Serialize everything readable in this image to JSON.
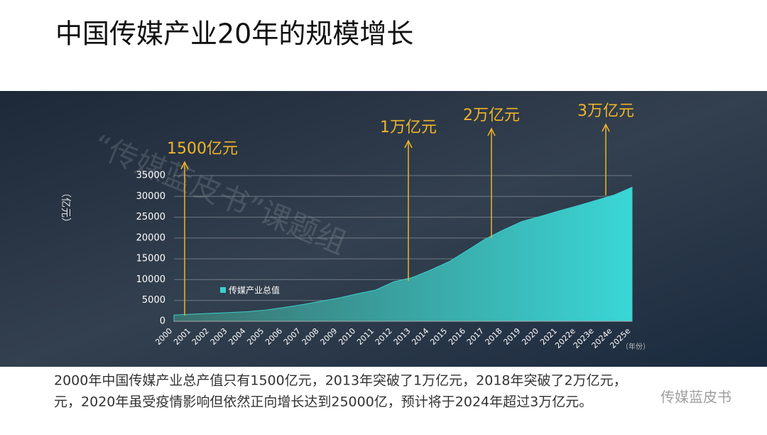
{
  "title": "中国传媒产业20年的规模增长",
  "caption": [
    "2000年中国传媒产业总产值只有1500亿元，2013年突破了1万亿元，2018年突破了2万亿元，",
    "元，2020年虽受疫情影响但依然正向增长达到25000亿，预计将于2024年超过3万亿元。"
  ],
  "watermark": "“传媒蓝皮书”课题组",
  "logo_text": "传媒蓝皮书",
  "chart_data": {
    "type": "area",
    "y_label": "（亿元）",
    "x_label": "（年份）",
    "categories": [
      "2000",
      "2001",
      "2002",
      "2003",
      "2004",
      "2005",
      "2006",
      "2007",
      "2008",
      "2009",
      "2010",
      "2011",
      "2012",
      "2013",
      "2014",
      "2015",
      "2016",
      "2017",
      "2018",
      "2019",
      "2020",
      "2021",
      "2022e",
      "2023e",
      "2024e",
      "2025e"
    ],
    "series": [
      {
        "name": "传媒产业总值",
        "color": "#3ccfcf",
        "values": [
          1500,
          1700,
          1900,
          2100,
          2300,
          2700,
          3300,
          4000,
          4800,
          5600,
          6600,
          7500,
          9500,
          10500,
          12300,
          14300,
          17000,
          19800,
          22000,
          24000,
          25200,
          26500,
          27700,
          29000,
          30300,
          32200
        ]
      }
    ],
    "ylim": [
      0,
      35000
    ],
    "yticks": [
      0,
      5000,
      10000,
      15000,
      20000,
      25000,
      30000,
      35000
    ],
    "grid": true,
    "annotations": [
      "1500亿元",
      "1万亿元",
      "2万亿元",
      "3万亿元"
    ],
    "annotation_color": "#f0b428"
  }
}
